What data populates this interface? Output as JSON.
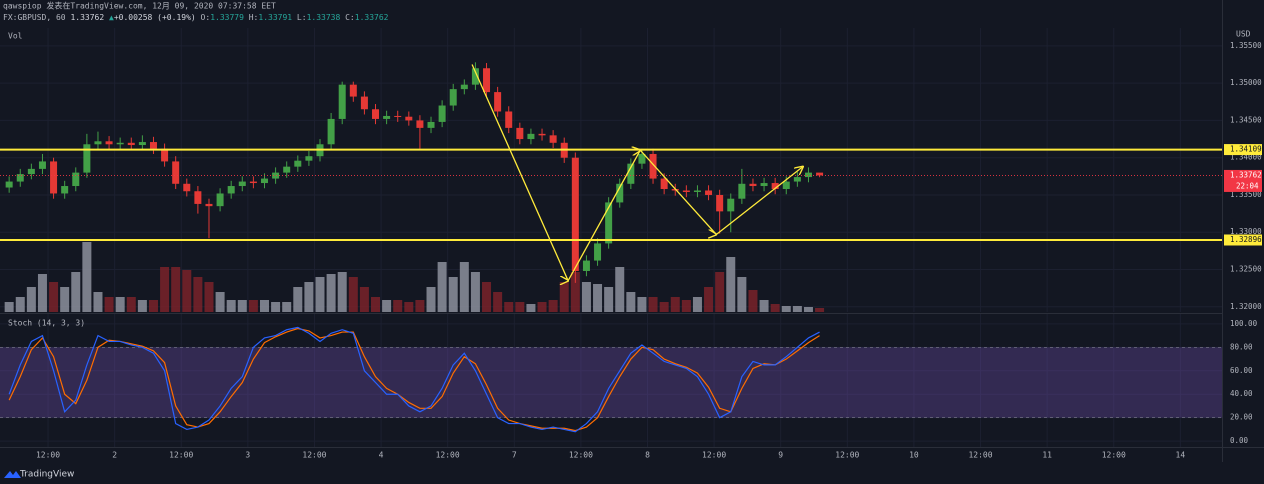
{
  "header": {
    "line1": "qawspiop 发表在TradingView.com, 12月 09, 2020 07:37:58 EET",
    "symbol": "FX:GBPUSD, 60",
    "price": "1.33762",
    "arrow": "▲",
    "change": "+0.00258 (+0.19%)",
    "o_label": "O:",
    "o": "1.33779",
    "h_label": "H:",
    "h": "1.33791",
    "l_label": "L:",
    "l": "1.33738",
    "c_label": "C:",
    "c": "1.33762"
  },
  "footer": {
    "brand": "TradingView"
  },
  "chart_data": [
    {
      "type": "candlestick",
      "volume_title": "Vol",
      "axis_label": "USD",
      "x": [
        -7,
        -5,
        -3,
        -1,
        1,
        3,
        5,
        7,
        9,
        11,
        13,
        15,
        17,
        19,
        21,
        23,
        25,
        27,
        29,
        31,
        33,
        35,
        37,
        39,
        41,
        43,
        45,
        47,
        49,
        51,
        53,
        55,
        57,
        59,
        61,
        63,
        65,
        67,
        69,
        71,
        73,
        75,
        77,
        79,
        81,
        83,
        85,
        87,
        89,
        91,
        93,
        95,
        97,
        99,
        101,
        103,
        105,
        107,
        109,
        111,
        113,
        115,
        117,
        119,
        121,
        123,
        125,
        127,
        129,
        131,
        133,
        135,
        137,
        139
      ],
      "open": [
        1.336,
        1.3368,
        1.3378,
        1.3385,
        1.3395,
        1.3352,
        1.3362,
        1.338,
        1.3418,
        1.3422,
        1.3418,
        1.342,
        1.3417,
        1.3421,
        1.3412,
        1.3395,
        1.3365,
        1.3355,
        1.3338,
        1.3335,
        1.3352,
        1.3362,
        1.3368,
        1.3366,
        1.3372,
        1.338,
        1.3388,
        1.3396,
        1.3402,
        1.3418,
        1.3452,
        1.3498,
        1.3482,
        1.3465,
        1.3452,
        1.3456,
        1.3455,
        1.345,
        1.344,
        1.3448,
        1.347,
        1.3492,
        1.3498,
        1.352,
        1.3488,
        1.3462,
        1.344,
        1.3425,
        1.3432,
        1.343,
        1.342,
        1.34,
        1.3248,
        1.3262,
        1.3285,
        1.334,
        1.3365,
        1.3392,
        1.3405,
        1.3372,
        1.3358,
        1.3356,
        1.3354,
        1.3356,
        1.335,
        1.3328,
        1.3345,
        1.3365,
        1.3362,
        1.3366,
        1.3358,
        1.3368,
        1.3374,
        1.338
      ],
      "high": [
        1.3375,
        1.3385,
        1.3392,
        1.3405,
        1.34,
        1.3369,
        1.3387,
        1.3432,
        1.3435,
        1.3429,
        1.3427,
        1.3427,
        1.343,
        1.3428,
        1.3419,
        1.3402,
        1.3372,
        1.3362,
        1.3345,
        1.3359,
        1.3369,
        1.3375,
        1.3375,
        1.3379,
        1.3387,
        1.3395,
        1.3403,
        1.3409,
        1.3425,
        1.346,
        1.3502,
        1.3502,
        1.3489,
        1.3472,
        1.3463,
        1.3463,
        1.3462,
        1.3457,
        1.3455,
        1.3477,
        1.3499,
        1.3505,
        1.3528,
        1.3527,
        1.3495,
        1.3469,
        1.3447,
        1.3439,
        1.3439,
        1.3437,
        1.3427,
        1.3407,
        1.3269,
        1.3292,
        1.3347,
        1.3372,
        1.3399,
        1.3412,
        1.3412,
        1.3379,
        1.3365,
        1.3363,
        1.3363,
        1.3363,
        1.3357,
        1.3352,
        1.3385,
        1.3372,
        1.3373,
        1.3373,
        1.3375,
        1.3381,
        1.3387,
        1.33791
      ],
      "low": [
        1.3353,
        1.3361,
        1.3371,
        1.3378,
        1.3345,
        1.3345,
        1.3355,
        1.3373,
        1.3411,
        1.3411,
        1.3411,
        1.341,
        1.341,
        1.3405,
        1.3388,
        1.3358,
        1.3348,
        1.3325,
        1.3292,
        1.3328,
        1.3345,
        1.3355,
        1.3359,
        1.3359,
        1.3365,
        1.3373,
        1.3381,
        1.3389,
        1.3395,
        1.3411,
        1.3445,
        1.3475,
        1.3458,
        1.3445,
        1.3445,
        1.3448,
        1.3443,
        1.3412,
        1.3433,
        1.3441,
        1.3463,
        1.3485,
        1.3491,
        1.3481,
        1.3455,
        1.3433,
        1.3418,
        1.3418,
        1.3423,
        1.3413,
        1.3393,
        1.3232,
        1.3241,
        1.3255,
        1.3278,
        1.3333,
        1.3358,
        1.3385,
        1.3365,
        1.3351,
        1.3349,
        1.3347,
        1.3347,
        1.3343,
        1.3298,
        1.33,
        1.3338,
        1.3355,
        1.3355,
        1.3351,
        1.3351,
        1.3361,
        1.3367,
        1.33738
      ],
      "close": [
        1.3368,
        1.3378,
        1.3385,
        1.3395,
        1.3352,
        1.3362,
        1.338,
        1.3418,
        1.3422,
        1.3418,
        1.342,
        1.3417,
        1.3421,
        1.3412,
        1.3395,
        1.3365,
        1.3355,
        1.3338,
        1.3335,
        1.3352,
        1.3362,
        1.3368,
        1.3366,
        1.3372,
        1.338,
        1.3388,
        1.3396,
        1.3402,
        1.3418,
        1.3452,
        1.3498,
        1.3482,
        1.3465,
        1.3452,
        1.3456,
        1.3455,
        1.345,
        1.344,
        1.3448,
        1.347,
        1.3492,
        1.3498,
        1.352,
        1.3488,
        1.3462,
        1.344,
        1.3425,
        1.3432,
        1.343,
        1.342,
        1.34,
        1.3248,
        1.3262,
        1.3285,
        1.334,
        1.3365,
        1.3392,
        1.3405,
        1.3372,
        1.3358,
        1.3356,
        1.3354,
        1.3356,
        1.335,
        1.3328,
        1.3345,
        1.3365,
        1.3362,
        1.3366,
        1.3358,
        1.3368,
        1.3374,
        1.338,
        1.33762
      ],
      "volume": [
        500,
        750,
        1250,
        1900,
        1500,
        1250,
        2000,
        3500,
        1000,
        750,
        750,
        750,
        600,
        600,
        2250,
        2250,
        2100,
        1750,
        1500,
        1000,
        600,
        600,
        600,
        600,
        500,
        500,
        1250,
        1500,
        1750,
        1900,
        2000,
        1750,
        1250,
        750,
        600,
        600,
        500,
        600,
        1250,
        2500,
        1750,
        2500,
        2000,
        1500,
        1000,
        500,
        500,
        400,
        500,
        600,
        1500,
        2000,
        1500,
        1400,
        1250,
        2250,
        1000,
        750,
        750,
        500,
        750,
        600,
        750,
        1250,
        2000,
        2750,
        1750,
        1100,
        600,
        400,
        300,
        300,
        250,
        200
      ],
      "volume_lim": [
        0,
        4000
      ],
      "up_color": "#43a047",
      "down_color": "#e53935",
      "volume_up_color": "#8d919c",
      "volume_down_color": "#7a2229",
      "ylim": [
        1.3193,
        1.3574
      ],
      "yticks": [
        {
          "value": 1.355,
          "label": "1.35500"
        },
        {
          "value": 1.35,
          "label": "1.35000"
        },
        {
          "value": 1.345,
          "label": "1.34500"
        },
        {
          "value": 1.34,
          "label": "1.34000"
        },
        {
          "value": 1.335,
          "label": "1.33500"
        },
        {
          "value": 1.33,
          "label": "1.33000"
        },
        {
          "value": 1.325,
          "label": "1.32500"
        },
        {
          "value": 1.32,
          "label": "1.32000"
        }
      ],
      "hlines": [
        {
          "value": 1.34109,
          "color": "#ffeb3b"
        },
        {
          "value": 1.32896,
          "color": "#ffeb3b"
        }
      ],
      "last_price": 1.33762,
      "last_price_color": "#f23645",
      "countdown": "22:04",
      "drawing": {
        "x": [
          76.4,
          93.7,
          106.7,
          120.4,
          136
        ],
        "y": [
          1.3525,
          1.3235,
          1.341,
          1.3297,
          1.3388
        ],
        "color": "#ffeb3b"
      }
    },
    {
      "type": "line",
      "title": "Stoch (14, 3, 3)",
      "x": [
        -7,
        -5,
        -3,
        -1,
        1,
        3,
        5,
        7,
        9,
        11,
        13,
        15,
        17,
        19,
        21,
        23,
        25,
        27,
        29,
        31,
        33,
        35,
        37,
        39,
        41,
        43,
        45,
        47,
        49,
        51,
        53,
        55,
        57,
        59,
        61,
        63,
        65,
        67,
        69,
        71,
        73,
        75,
        77,
        79,
        81,
        83,
        85,
        87,
        89,
        91,
        93,
        95,
        97,
        99,
        101,
        103,
        105,
        107,
        109,
        111,
        113,
        115,
        117,
        119,
        121,
        123,
        125,
        127,
        129,
        131,
        133,
        135,
        137,
        139
      ],
      "series": [
        {
          "color": "#2962ff",
          "values": [
            40,
            65,
            85,
            90,
            60,
            25,
            35,
            65,
            90,
            85,
            85,
            82,
            80,
            75,
            60,
            15,
            10,
            12,
            18,
            30,
            45,
            55,
            80,
            88,
            90,
            95,
            97,
            92,
            85,
            92,
            95,
            92,
            60,
            50,
            40,
            40,
            30,
            25,
            30,
            45,
            65,
            75,
            60,
            40,
            20,
            15,
            15,
            12,
            10,
            12,
            10,
            8,
            15,
            25,
            45,
            60,
            75,
            82,
            75,
            68,
            65,
            62,
            55,
            40,
            20,
            25,
            55,
            68,
            65,
            65,
            72,
            80,
            88,
            93
          ]
        },
        {
          "color": "#ff6d00",
          "values": [
            35,
            55,
            78,
            88,
            72,
            40,
            32,
            52,
            80,
            86,
            85,
            83,
            81,
            77,
            67,
            30,
            14,
            12,
            15,
            25,
            38,
            50,
            70,
            84,
            89,
            93,
            96,
            94,
            88,
            90,
            93,
            93,
            72,
            55,
            45,
            40,
            33,
            28,
            28,
            38,
            58,
            72,
            66,
            48,
            28,
            18,
            15,
            13,
            11,
            11,
            11,
            9,
            12,
            20,
            38,
            55,
            70,
            80,
            78,
            70,
            66,
            63,
            58,
            46,
            28,
            25,
            45,
            62,
            66,
            65,
            70,
            77,
            84,
            90
          ]
        }
      ],
      "band": [
        20,
        80
      ],
      "band_color": "#7e57c2",
      "ylim": [
        -5,
        105
      ],
      "yticks": [
        {
          "value": 100,
          "label": "100.00"
        },
        {
          "value": 80,
          "label": "80.00"
        },
        {
          "value": 60,
          "label": "60.00"
        },
        {
          "value": 40,
          "label": "40.00"
        },
        {
          "value": 20,
          "label": "20.00"
        },
        {
          "value": 0,
          "label": "0.00"
        }
      ],
      "xlim": [
        -8.65,
        211.5
      ],
      "xticks": [
        {
          "value": 0,
          "label": "12:00"
        },
        {
          "value": 12,
          "label": "2"
        },
        {
          "value": 24,
          "label": "12:00"
        },
        {
          "value": 36,
          "label": "3"
        },
        {
          "value": 48,
          "label": "12:00"
        },
        {
          "value": 60,
          "label": "4"
        },
        {
          "value": 72,
          "label": "12:00"
        },
        {
          "value": 84,
          "label": "7"
        },
        {
          "value": 96,
          "label": "12:00"
        },
        {
          "value": 108,
          "label": "8"
        },
        {
          "value": 120,
          "label": "12:00"
        },
        {
          "value": 132,
          "label": "9"
        },
        {
          "value": 144,
          "label": "12:00"
        },
        {
          "value": 156,
          "label": "10"
        },
        {
          "value": 168,
          "label": "12:00"
        },
        {
          "value": 180,
          "label": "11"
        },
        {
          "value": 192,
          "label": "12:00"
        },
        {
          "value": 204,
          "label": "14"
        }
      ]
    }
  ]
}
